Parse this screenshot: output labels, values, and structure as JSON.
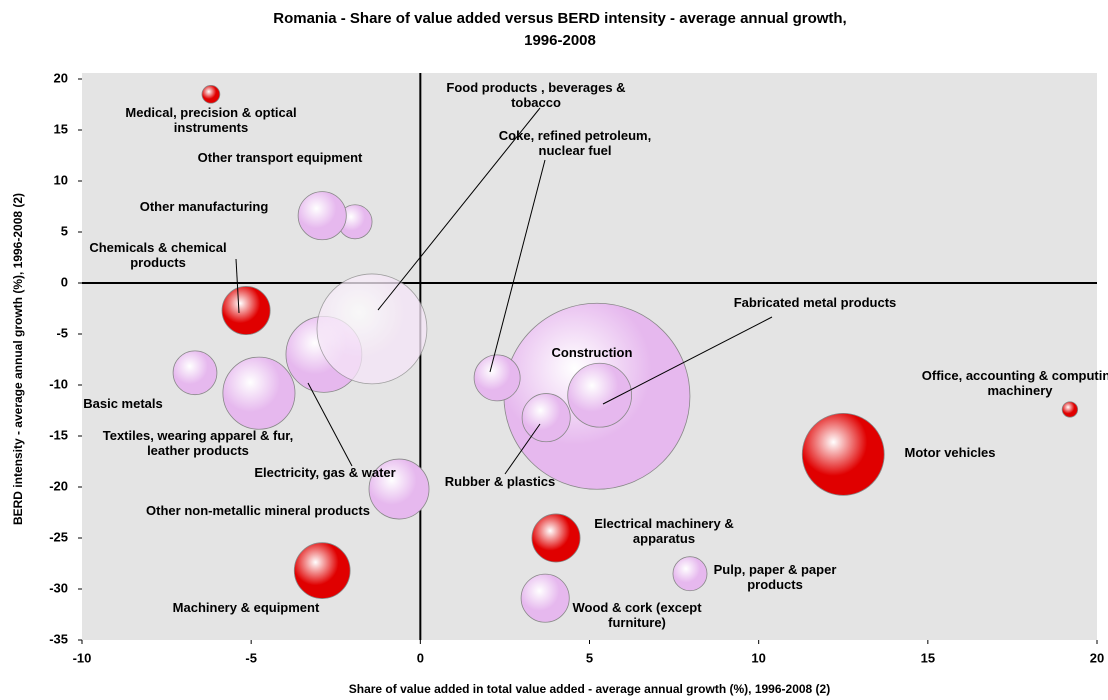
{
  "chart_data": {
    "type": "bubble",
    "title": "Romania - Share of value added versus BERD intensity - average annual growth, 1996-2008",
    "x_label": "Share of value added in total value added - average annual growth (%), 1996-2008 (2)",
    "y_label": "BERD intensity - average annual growth (%), 1996-2008 (2)",
    "xlim": [
      -10,
      20
    ],
    "xticks": [
      -10,
      -5,
      0,
      5,
      10,
      15,
      20
    ],
    "ylim": [
      -35,
      20
    ],
    "yticks": [
      -35,
      -30,
      -25,
      -20,
      -15,
      -10,
      -5,
      0,
      5,
      10,
      15,
      20
    ],
    "points": [
      {
        "name": "Construction",
        "x": 5.22,
        "y": -11.1,
        "size": 865,
        "color": "#e6b8ee"
      },
      {
        "name": "Fabricated metal products",
        "x": 5.3,
        "y": -11.0,
        "size": 102,
        "color": "#e6b8ee"
      },
      {
        "name": "Rubber & plastics",
        "x": 3.72,
        "y": -13.2,
        "size": 58,
        "color": "#e6b8ee"
      },
      {
        "name": "Coke, refined petroleum, nuclear fuel",
        "x": 2.27,
        "y": -9.3,
        "size": 53,
        "color": "#e6b8ee"
      },
      {
        "name": "Electricity, gas & water",
        "x": -2.85,
        "y": -7.0,
        "size": 144,
        "color": "#e6b8ee"
      },
      {
        "name": "Food products , beverages & tobacco",
        "x": -1.43,
        "y": -4.5,
        "size": 302,
        "color": "#f6e6f8"
      },
      {
        "name": "Medical, precision & optical instruments",
        "x": -6.19,
        "y": 18.5,
        "size": 8,
        "color": "#e00000"
      },
      {
        "name": "Other transport equipment",
        "x": -1.93,
        "y": 6.0,
        "size": 29,
        "color": "#e6b8ee"
      },
      {
        "name": "Other manufacturing",
        "x": -2.9,
        "y": 6.6,
        "size": 58,
        "color": "#e6b8ee"
      },
      {
        "name": "Chemicals & chemical products",
        "x": -5.15,
        "y": -2.7,
        "size": 58,
        "color": "#e00000"
      },
      {
        "name": "Basic metals",
        "x": -6.66,
        "y": -8.8,
        "size": 48,
        "color": "#e6b8ee"
      },
      {
        "name": "Textiles, wearing apparel & fur, leather products",
        "x": -4.77,
        "y": -10.8,
        "size": 130,
        "color": "#e6b8ee"
      },
      {
        "name": "Office, accounting & computing machinery",
        "x": 19.2,
        "y": -12.4,
        "size": 6,
        "color": "#e00000"
      },
      {
        "name": "Motor vehicles",
        "x": 12.5,
        "y": -16.8,
        "size": 168,
        "color": "#e00000"
      },
      {
        "name": "Other non-metallic mineral products",
        "x": -0.63,
        "y": -20.2,
        "size": 90,
        "color": "#e6b8ee"
      },
      {
        "name": "Electrical machinery & apparatus",
        "x": 4.01,
        "y": -25.0,
        "size": 58,
        "color": "#e00000"
      },
      {
        "name": "Pulp, paper & paper products",
        "x": 7.97,
        "y": -28.5,
        "size": 29,
        "color": "#e6b8ee"
      },
      {
        "name": "Wood & cork (except furniture)",
        "x": 3.69,
        "y": -30.9,
        "size": 58,
        "color": "#e6b8ee"
      },
      {
        "name": "Machinery & equipment",
        "x": -2.9,
        "y": -28.2,
        "size": 78,
        "color": "#e00000"
      }
    ]
  }
}
